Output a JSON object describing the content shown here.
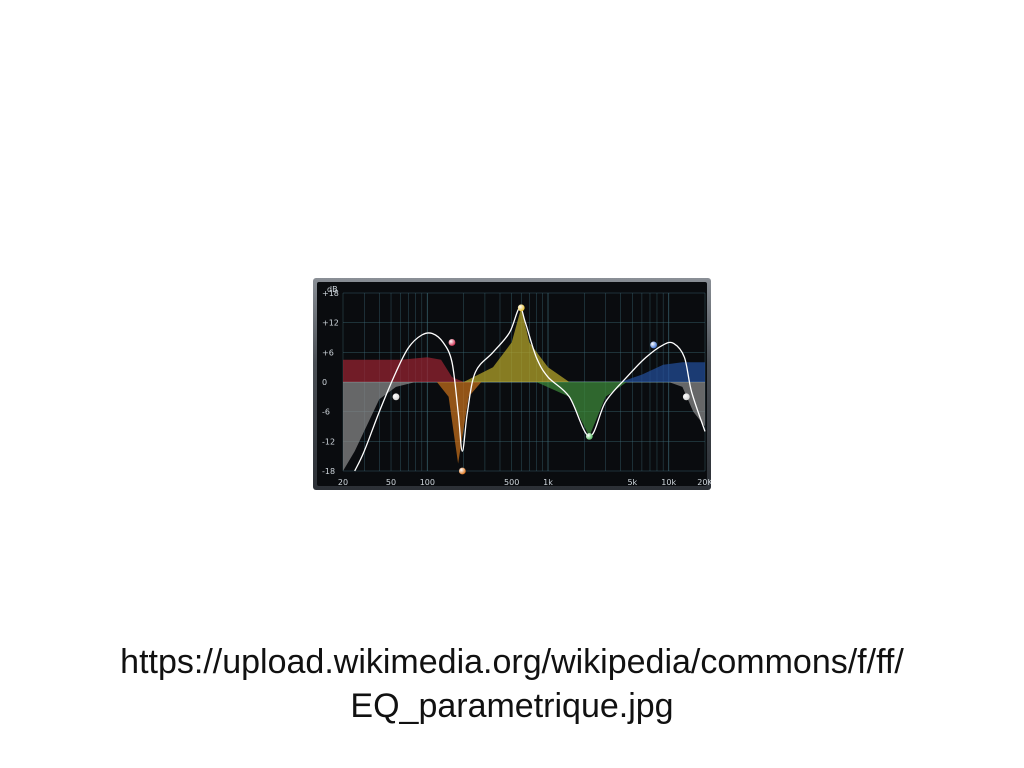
{
  "caption": {
    "line1": "https://upload.wikimedia.org/wikipedia/commons/f/ff/",
    "line2": "EQ_parametrique.jpg"
  },
  "chart_data": {
    "type": "line",
    "title": "",
    "ylabel": "dB",
    "xscale": "log",
    "xlim": [
      20,
      20000
    ],
    "ylim": [
      -18,
      18
    ],
    "grid": true,
    "x_ticks": [
      {
        "v": 20,
        "label": "20"
      },
      {
        "v": 50,
        "label": "50"
      },
      {
        "v": 100,
        "label": "100"
      },
      {
        "v": 500,
        "label": "500"
      },
      {
        "v": 1000,
        "label": "1k"
      },
      {
        "v": 5000,
        "label": "5k"
      },
      {
        "v": 10000,
        "label": "10k"
      },
      {
        "v": 20000,
        "label": "20K"
      }
    ],
    "y_ticks": [
      {
        "v": 18,
        "label": "+18"
      },
      {
        "v": 12,
        "label": "+12"
      },
      {
        "v": 6,
        "label": "+6"
      },
      {
        "v": 0,
        "label": "0"
      },
      {
        "v": -6,
        "label": "-6"
      },
      {
        "v": -12,
        "label": "-12"
      },
      {
        "v": -18,
        "label": "-18"
      }
    ],
    "bands": [
      {
        "color": "#9a2230",
        "points": [
          [
            20,
            4.5
          ],
          [
            60,
            4.5
          ],
          [
            100,
            5
          ],
          [
            130,
            4.5
          ],
          [
            160,
            1
          ],
          [
            200,
            0
          ]
        ]
      },
      {
        "color": "#c8701a",
        "points": [
          [
            120,
            0
          ],
          [
            150,
            -3
          ],
          [
            180,
            -16.5
          ],
          [
            220,
            -3
          ],
          [
            280,
            0
          ]
        ]
      },
      {
        "color": "#b8a82a",
        "points": [
          [
            200,
            0
          ],
          [
            350,
            3
          ],
          [
            500,
            8
          ],
          [
            600,
            15
          ],
          [
            700,
            8
          ],
          [
            1000,
            3
          ],
          [
            1500,
            0
          ]
        ]
      },
      {
        "color": "#3f8a3a",
        "points": [
          [
            800,
            0
          ],
          [
            1500,
            -3
          ],
          [
            2200,
            -11
          ],
          [
            3000,
            -3
          ],
          [
            4500,
            0
          ]
        ]
      },
      {
        "color": "#234d9a",
        "points": [
          [
            4000,
            0
          ],
          [
            6000,
            1.5
          ],
          [
            9000,
            3.5
          ],
          [
            13000,
            4
          ],
          [
            20000,
            4
          ]
        ]
      },
      {
        "color": "#8a8a8a",
        "points": [
          [
            20,
            -18
          ],
          [
            25,
            -14
          ],
          [
            40,
            -3.5
          ],
          [
            55,
            -1
          ],
          [
            80,
            0
          ]
        ]
      },
      {
        "color": "#8a8a8a",
        "points": [
          [
            10000,
            0
          ],
          [
            13000,
            -1
          ],
          [
            16000,
            -6
          ],
          [
            20000,
            -9
          ]
        ]
      }
    ],
    "curve": [
      [
        25,
        -18
      ],
      [
        30,
        -14
      ],
      [
        40,
        -6
      ],
      [
        55,
        2
      ],
      [
        70,
        7
      ],
      [
        90,
        9.5
      ],
      [
        110,
        9.8
      ],
      [
        135,
        8
      ],
      [
        160,
        4
      ],
      [
        180,
        -6
      ],
      [
        195,
        -14
      ],
      [
        215,
        -6
      ],
      [
        250,
        2
      ],
      [
        350,
        6
      ],
      [
        480,
        10
      ],
      [
        580,
        15
      ],
      [
        650,
        12
      ],
      [
        800,
        5
      ],
      [
        1000,
        1
      ],
      [
        1500,
        -3
      ],
      [
        2200,
        -11
      ],
      [
        3000,
        -4
      ],
      [
        4500,
        1
      ],
      [
        6500,
        5
      ],
      [
        9000,
        7.5
      ],
      [
        11000,
        7.8
      ],
      [
        13500,
        5
      ],
      [
        15500,
        -2
      ],
      [
        20000,
        -10
      ]
    ],
    "nodes": [
      {
        "x": 55,
        "y": -3,
        "color": "#d8d8d8"
      },
      {
        "x": 160,
        "y": 8,
        "color": "#d23a5a"
      },
      {
        "x": 195,
        "y": -18,
        "color": "#e07a25"
      },
      {
        "x": 600,
        "y": 15,
        "color": "#e6c23a"
      },
      {
        "x": 2200,
        "y": -11,
        "color": "#5fbf6a"
      },
      {
        "x": 7500,
        "y": 7.5,
        "color": "#4a7ad6"
      },
      {
        "x": 14000,
        "y": -3,
        "color": "#d8d8d8"
      }
    ],
    "colors": {
      "panel_bg": "#0a0c0f",
      "grid": "#3e6b78",
      "zero_line": "#7fa9b0",
      "curve": "#ffffff"
    }
  }
}
